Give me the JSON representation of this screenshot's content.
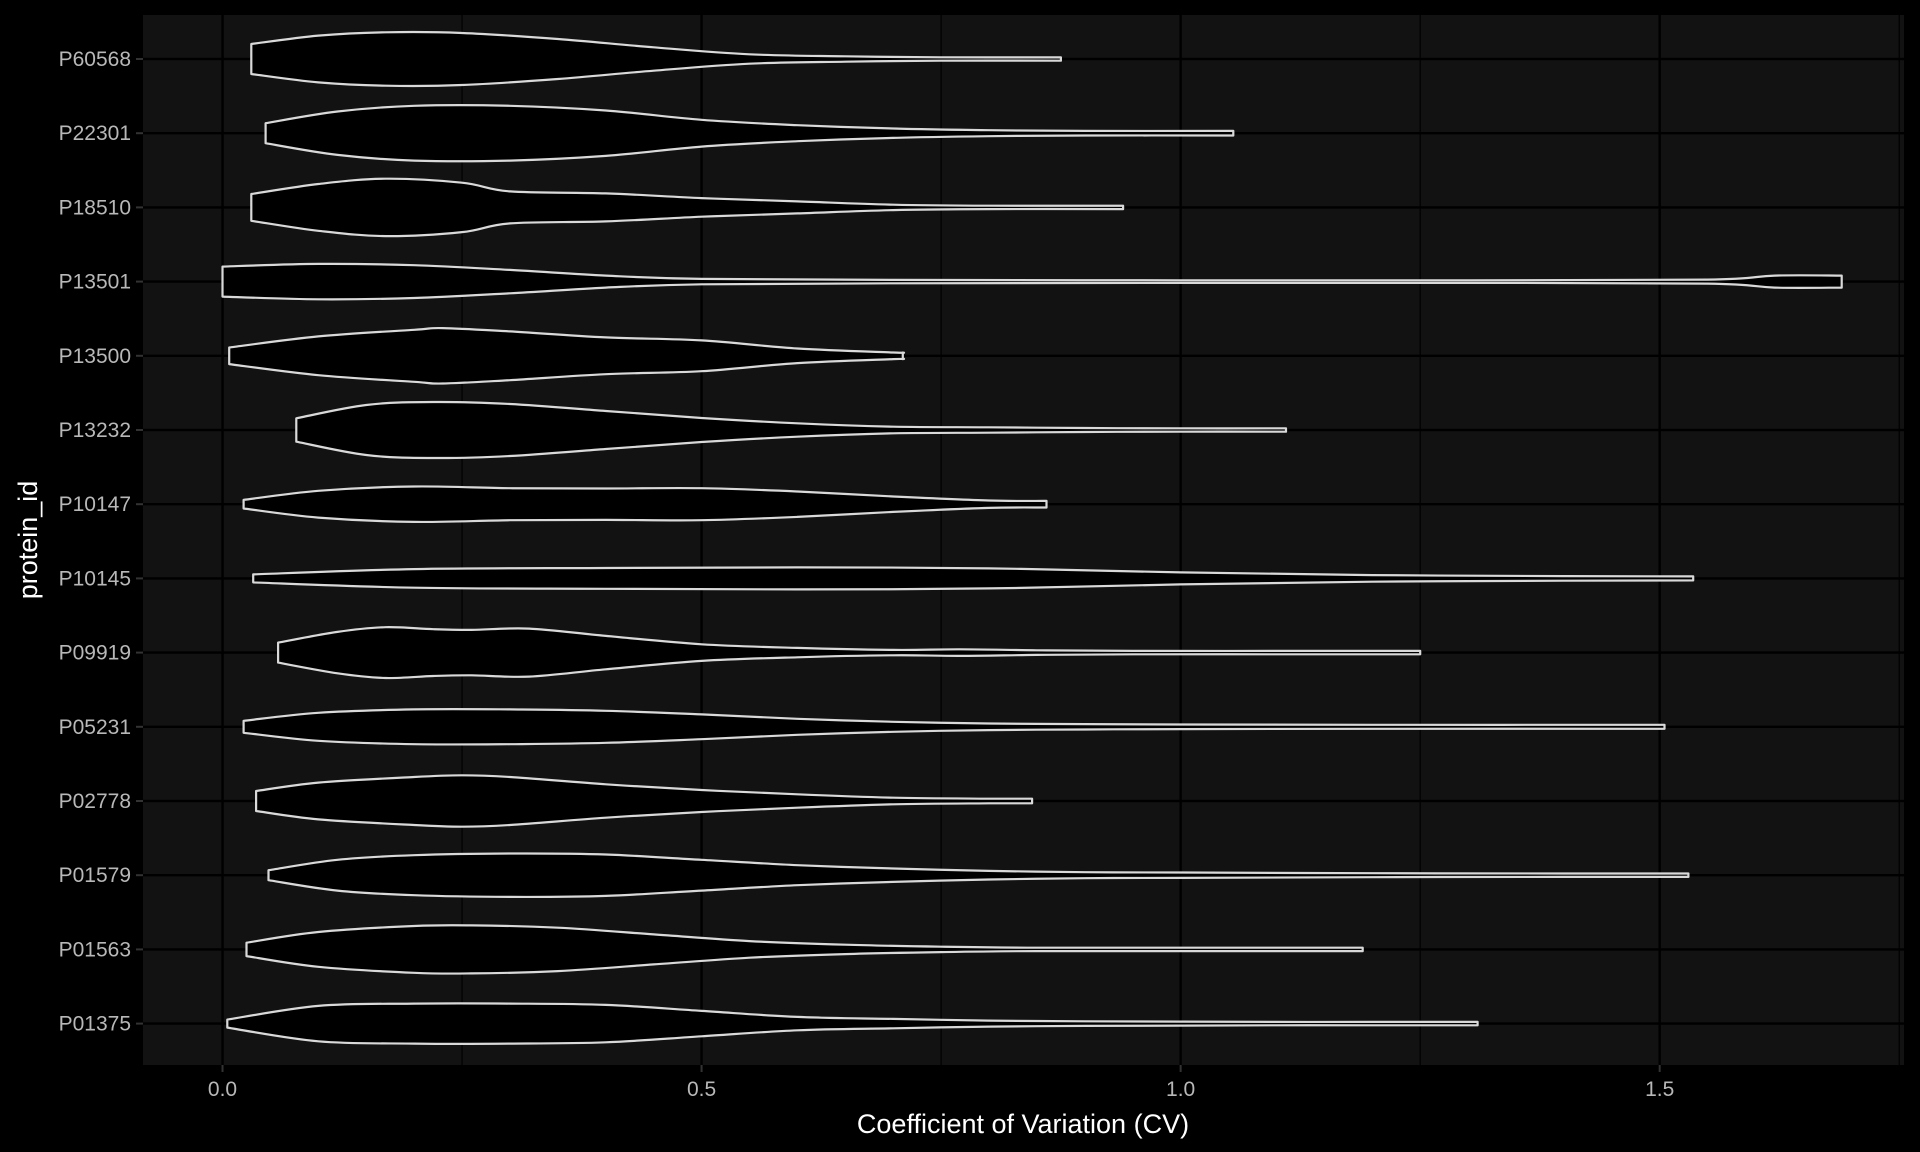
{
  "chart_data": {
    "type": "violin",
    "orientation": "horizontal",
    "xlabel": "Coefficient of Variation (CV)",
    "ylabel": "protein_id",
    "xlim": [
      -0.083,
      1.755
    ],
    "xticks": [
      0.0,
      0.5,
      1.0,
      1.5
    ],
    "xtick_labels": [
      "0.0",
      "0.5",
      "1.0",
      "1.5"
    ],
    "grid": true,
    "legend": "none",
    "colors": {
      "background": "#000000",
      "panel": "#121212",
      "grid": "#000000",
      "violin_fill": "#000000",
      "violin_stroke": "#d9d9d9",
      "tick_text": "#b8b8b8",
      "title_text": "#ffffff"
    },
    "categories": [
      "P01375",
      "P01563",
      "P01579",
      "P02778",
      "P05231",
      "P09919",
      "P10145",
      "P10147",
      "P13232",
      "P13500",
      "P13501",
      "P18510",
      "P22301",
      "P60568"
    ],
    "violins": [
      {
        "category": "P01375",
        "min": 0.005,
        "max": 1.31,
        "profile": [
          [
            0.005,
            0.12
          ],
          [
            0.1,
            0.53
          ],
          [
            0.2,
            0.6
          ],
          [
            0.3,
            0.6
          ],
          [
            0.4,
            0.56
          ],
          [
            0.5,
            0.38
          ],
          [
            0.6,
            0.2
          ],
          [
            0.7,
            0.14
          ],
          [
            0.8,
            0.09
          ],
          [
            0.9,
            0.07
          ],
          [
            1.0,
            0.06
          ],
          [
            1.1,
            0.05
          ],
          [
            1.2,
            0.05
          ],
          [
            1.31,
            0.05
          ]
        ]
      },
      {
        "category": "P01563",
        "min": 0.025,
        "max": 1.19,
        "profile": [
          [
            0.025,
            0.2
          ],
          [
            0.1,
            0.52
          ],
          [
            0.2,
            0.7
          ],
          [
            0.26,
            0.72
          ],
          [
            0.35,
            0.65
          ],
          [
            0.45,
            0.45
          ],
          [
            0.55,
            0.25
          ],
          [
            0.65,
            0.14
          ],
          [
            0.75,
            0.08
          ],
          [
            0.85,
            0.05
          ],
          [
            1.0,
            0.05
          ],
          [
            1.19,
            0.05
          ]
        ]
      },
      {
        "category": "P01579",
        "min": 0.048,
        "max": 1.53,
        "profile": [
          [
            0.048,
            0.15
          ],
          [
            0.12,
            0.46
          ],
          [
            0.2,
            0.6
          ],
          [
            0.3,
            0.65
          ],
          [
            0.4,
            0.62
          ],
          [
            0.5,
            0.46
          ],
          [
            0.6,
            0.3
          ],
          [
            0.7,
            0.2
          ],
          [
            0.8,
            0.13
          ],
          [
            0.9,
            0.09
          ],
          [
            1.0,
            0.08
          ],
          [
            1.2,
            0.06
          ],
          [
            1.4,
            0.05
          ],
          [
            1.53,
            0.05
          ]
        ]
      },
      {
        "category": "P02778",
        "min": 0.035,
        "max": 0.845,
        "profile": [
          [
            0.035,
            0.3
          ],
          [
            0.1,
            0.55
          ],
          [
            0.2,
            0.72
          ],
          [
            0.25,
            0.77
          ],
          [
            0.3,
            0.72
          ],
          [
            0.4,
            0.5
          ],
          [
            0.5,
            0.33
          ],
          [
            0.6,
            0.2
          ],
          [
            0.7,
            0.1
          ],
          [
            0.8,
            0.07
          ],
          [
            0.845,
            0.07
          ]
        ]
      },
      {
        "category": "P05231",
        "min": 0.022,
        "max": 1.505,
        "profile": [
          [
            0.022,
            0.18
          ],
          [
            0.1,
            0.42
          ],
          [
            0.2,
            0.52
          ],
          [
            0.3,
            0.52
          ],
          [
            0.4,
            0.48
          ],
          [
            0.5,
            0.37
          ],
          [
            0.6,
            0.24
          ],
          [
            0.7,
            0.15
          ],
          [
            0.8,
            0.1
          ],
          [
            0.9,
            0.08
          ],
          [
            1.0,
            0.07
          ],
          [
            1.2,
            0.06
          ],
          [
            1.505,
            0.06
          ]
        ]
      },
      {
        "category": "P09919",
        "min": 0.058,
        "max": 1.25,
        "profile": [
          [
            0.058,
            0.3
          ],
          [
            0.12,
            0.62
          ],
          [
            0.17,
            0.76
          ],
          [
            0.22,
            0.7
          ],
          [
            0.26,
            0.68
          ],
          [
            0.32,
            0.72
          ],
          [
            0.4,
            0.5
          ],
          [
            0.5,
            0.25
          ],
          [
            0.6,
            0.14
          ],
          [
            0.7,
            0.08
          ],
          [
            0.77,
            0.1
          ],
          [
            0.85,
            0.07
          ],
          [
            0.95,
            0.05
          ],
          [
            1.1,
            0.05
          ],
          [
            1.25,
            0.05
          ]
        ]
      },
      {
        "category": "P10145",
        "min": 0.032,
        "max": 1.535,
        "profile": [
          [
            0.032,
            0.12
          ],
          [
            0.2,
            0.28
          ],
          [
            0.4,
            0.31
          ],
          [
            0.6,
            0.33
          ],
          [
            0.8,
            0.3
          ],
          [
            1.0,
            0.18
          ],
          [
            1.2,
            0.1
          ],
          [
            1.4,
            0.07
          ],
          [
            1.535,
            0.06
          ]
        ]
      },
      {
        "category": "P10147",
        "min": 0.022,
        "max": 0.86,
        "profile": [
          [
            0.022,
            0.13
          ],
          [
            0.1,
            0.4
          ],
          [
            0.2,
            0.53
          ],
          [
            0.3,
            0.48
          ],
          [
            0.4,
            0.47
          ],
          [
            0.5,
            0.48
          ],
          [
            0.6,
            0.38
          ],
          [
            0.7,
            0.23
          ],
          [
            0.8,
            0.11
          ],
          [
            0.86,
            0.1
          ]
        ]
      },
      {
        "category": "P13232",
        "min": 0.077,
        "max": 1.11,
        "profile": [
          [
            0.077,
            0.35
          ],
          [
            0.15,
            0.75
          ],
          [
            0.22,
            0.84
          ],
          [
            0.3,
            0.78
          ],
          [
            0.4,
            0.57
          ],
          [
            0.5,
            0.36
          ],
          [
            0.6,
            0.2
          ],
          [
            0.7,
            0.1
          ],
          [
            0.8,
            0.08
          ],
          [
            0.9,
            0.06
          ],
          [
            1.0,
            0.05
          ],
          [
            1.11,
            0.05
          ]
        ]
      },
      {
        "category": "P13500",
        "min": 0.007,
        "max": 0.71,
        "profile": [
          [
            0.007,
            0.25
          ],
          [
            0.1,
            0.58
          ],
          [
            0.2,
            0.78
          ],
          [
            0.23,
            0.83
          ],
          [
            0.3,
            0.73
          ],
          [
            0.4,
            0.55
          ],
          [
            0.5,
            0.46
          ],
          [
            0.6,
            0.22
          ],
          [
            0.7,
            0.1
          ],
          [
            0.71,
            0.1
          ]
        ]
      },
      {
        "category": "P13501",
        "min": 0.0,
        "max": 1.69,
        "profile": [
          [
            0.0,
            0.45
          ],
          [
            0.1,
            0.53
          ],
          [
            0.2,
            0.49
          ],
          [
            0.3,
            0.35
          ],
          [
            0.4,
            0.18
          ],
          [
            0.5,
            0.08
          ],
          [
            0.7,
            0.05
          ],
          [
            1.0,
            0.04
          ],
          [
            1.3,
            0.04
          ],
          [
            1.55,
            0.06
          ],
          [
            1.62,
            0.18
          ],
          [
            1.69,
            0.18
          ]
        ]
      },
      {
        "category": "P18510",
        "min": 0.03,
        "max": 0.94,
        "profile": [
          [
            0.03,
            0.4
          ],
          [
            0.1,
            0.7
          ],
          [
            0.17,
            0.86
          ],
          [
            0.25,
            0.74
          ],
          [
            0.3,
            0.48
          ],
          [
            0.4,
            0.42
          ],
          [
            0.5,
            0.28
          ],
          [
            0.6,
            0.18
          ],
          [
            0.7,
            0.08
          ],
          [
            0.8,
            0.05
          ],
          [
            0.94,
            0.05
          ]
        ]
      },
      {
        "category": "P22301",
        "min": 0.045,
        "max": 1.055,
        "profile": [
          [
            0.045,
            0.3
          ],
          [
            0.12,
            0.65
          ],
          [
            0.2,
            0.82
          ],
          [
            0.3,
            0.82
          ],
          [
            0.4,
            0.68
          ],
          [
            0.5,
            0.4
          ],
          [
            0.6,
            0.24
          ],
          [
            0.7,
            0.14
          ],
          [
            0.8,
            0.09
          ],
          [
            0.9,
            0.07
          ],
          [
            1.055,
            0.07
          ]
        ]
      },
      {
        "category": "P60568",
        "min": 0.03,
        "max": 0.875,
        "profile": [
          [
            0.03,
            0.45
          ],
          [
            0.1,
            0.7
          ],
          [
            0.17,
            0.8
          ],
          [
            0.25,
            0.78
          ],
          [
            0.35,
            0.6
          ],
          [
            0.45,
            0.35
          ],
          [
            0.55,
            0.14
          ],
          [
            0.65,
            0.08
          ],
          [
            0.75,
            0.05
          ],
          [
            0.875,
            0.05
          ]
        ]
      }
    ]
  }
}
